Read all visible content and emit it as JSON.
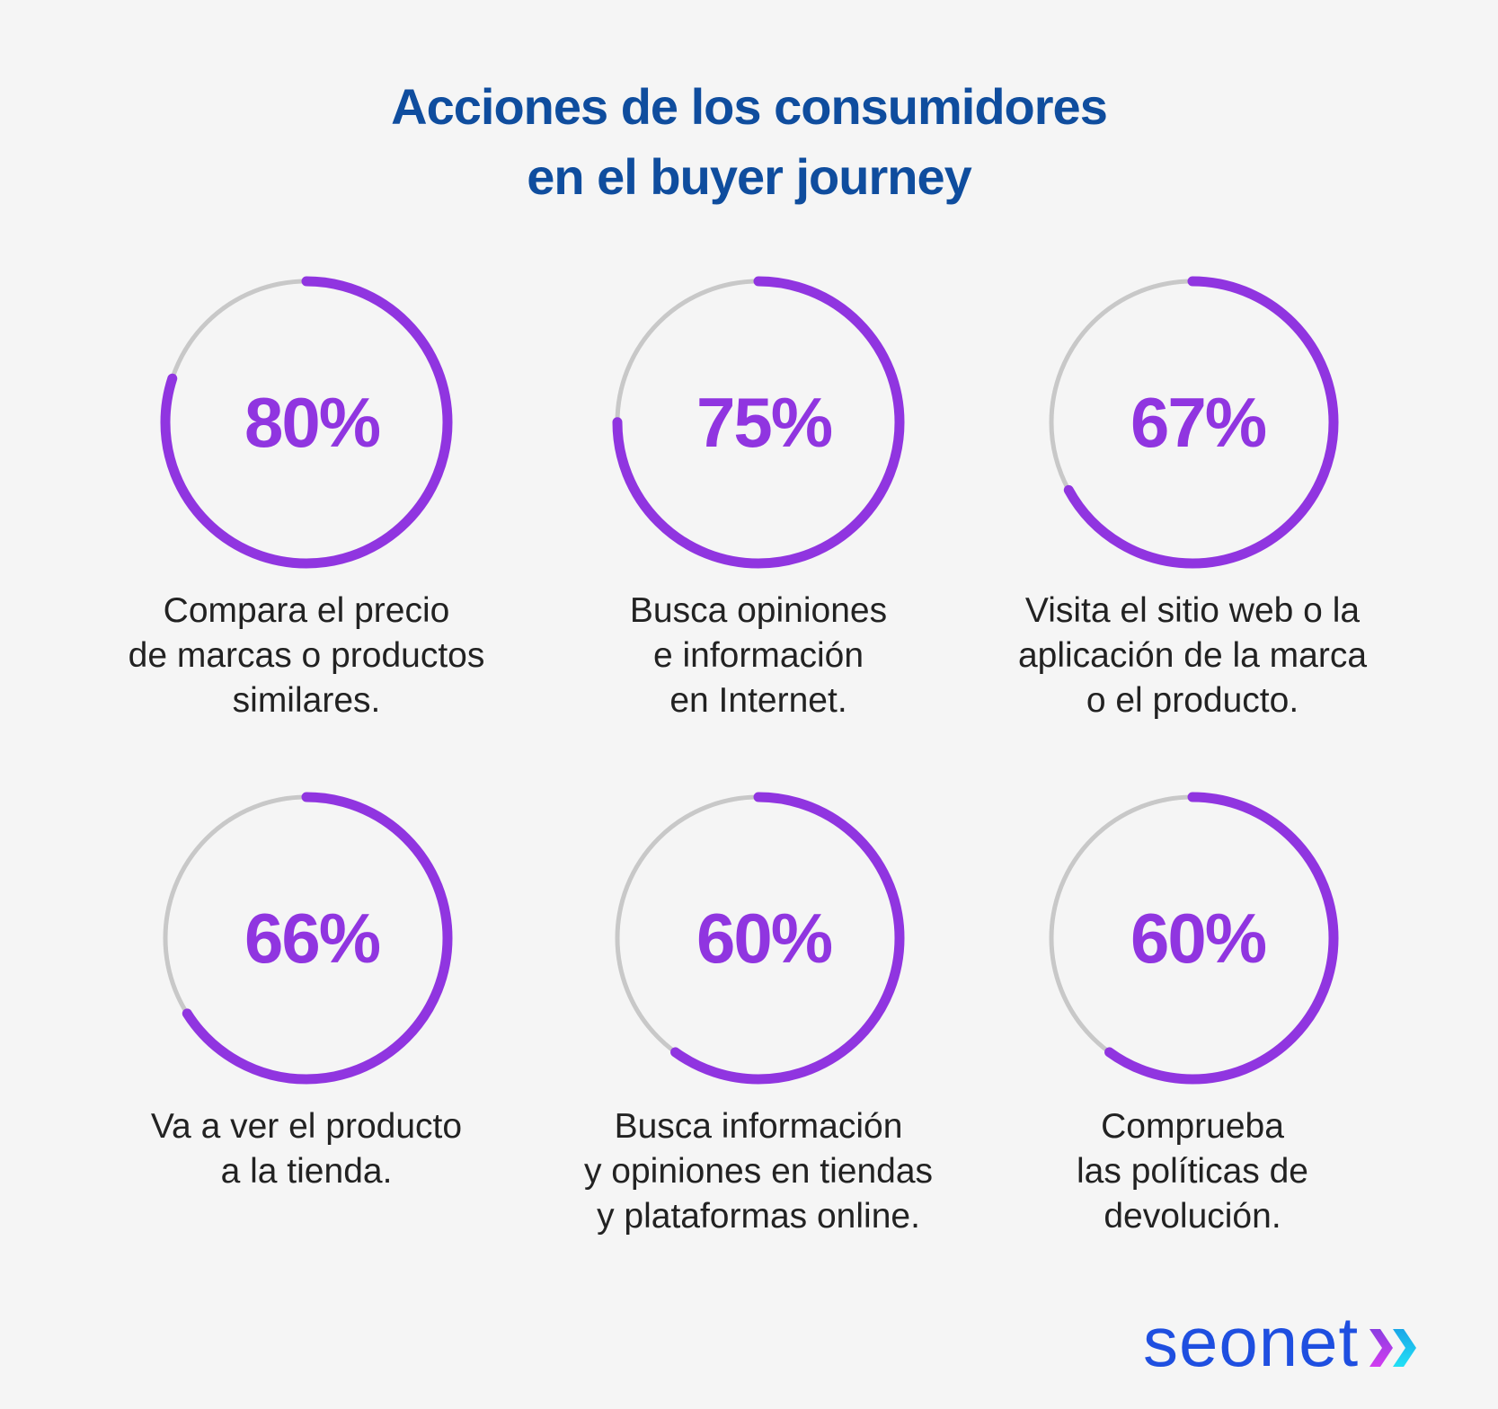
{
  "title": [
    "Acciones de los consumidores",
    "en el buyer journey"
  ],
  "colors": {
    "progress": "#9035e0",
    "track": "#c8c8c8",
    "title": "#0f4d9e",
    "logo": "#1f4fe0"
  },
  "chart_data": {
    "type": "radial-progress",
    "title": "Acciones de los consumidores en el buyer journey",
    "unit": "%",
    "items": [
      {
        "value": 80,
        "display": "80%",
        "label": [
          "Compara el precio",
          "de marcas o productos",
          "similares."
        ]
      },
      {
        "value": 75,
        "display": "75%",
        "label": [
          "Busca opiniones",
          "e información",
          "en Internet."
        ]
      },
      {
        "value": 67,
        "display": "67%",
        "label": [
          "Visita el sitio web o la",
          "aplicación de la marca",
          "o el producto."
        ]
      },
      {
        "value": 66,
        "display": "66%",
        "label": [
          "Va a ver el producto",
          "a la tienda."
        ]
      },
      {
        "value": 60,
        "display": "60%",
        "label": [
          "Busca información",
          "y opiniones en tiendas",
          "y plataformas online."
        ]
      },
      {
        "value": 60,
        "display": "60%",
        "label": [
          "Comprueba",
          "las políticas de",
          "devolución."
        ]
      }
    ]
  },
  "logo": {
    "text": "seonet",
    "icon": "double-chevron-right-icon"
  }
}
